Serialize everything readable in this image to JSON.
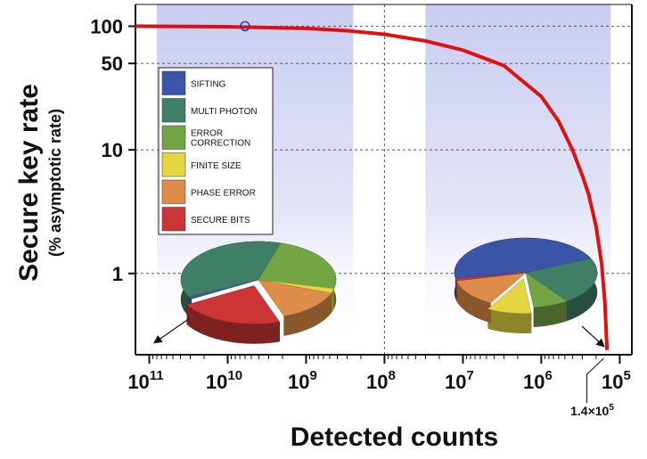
{
  "chart_data": {
    "type": "line",
    "xlabel": "Detected counts",
    "ylabel": "Secure key rate",
    "ylabel_sub": "(% asymptotic rate)",
    "x_scale": "log",
    "x_reversed": true,
    "y_scale": "log",
    "xlim": [
      150000000000,
      70000
    ],
    "ylim": [
      0.22,
      150
    ],
    "x_ticks": [
      {
        "value": 100000000000,
        "base": "10",
        "exp": "11"
      },
      {
        "value": 10000000000,
        "base": "10",
        "exp": "10"
      },
      {
        "value": 1000000000,
        "base": "10",
        "exp": "9"
      },
      {
        "value": 100000000,
        "base": "10",
        "exp": "8"
      },
      {
        "value": 10000000,
        "base": "10",
        "exp": "7"
      },
      {
        "value": 1000000,
        "base": "10",
        "exp": "6"
      },
      {
        "value": 100000,
        "base": "10",
        "exp": "5"
      }
    ],
    "y_ticks": [
      {
        "value": 100,
        "label": "100"
      },
      {
        "value": 50,
        "label": "50"
      },
      {
        "value": 10,
        "label": "10"
      },
      {
        "value": 1,
        "label": "1"
      }
    ],
    "grid": true,
    "shaded_bands": [
      {
        "x_start": 80000000000,
        "x_end": 250000000
      },
      {
        "x_start": 30000000,
        "x_end": 130000
      }
    ],
    "series": [
      {
        "color": "#e01010",
        "x": [
          150000000000,
          10000000000,
          1000000000,
          300000000,
          100000000,
          30000000,
          10000000,
          3000000,
          1000000,
          600000,
          400000,
          300000,
          250000,
          200000,
          170000,
          155000,
          145000
        ],
        "y": [
          100,
          99,
          96,
          92,
          86,
          76,
          64,
          48,
          27,
          17,
          10,
          6.2,
          4.4,
          2.4,
          1.2,
          0.6,
          0.24
        ]
      }
    ],
    "marker": {
      "x": 6000000000,
      "y": 100,
      "color": "#2a3cc8"
    },
    "annotation": {
      "label_base": "1.4×10",
      "label_exp": "5",
      "x": 140000
    },
    "legend": {
      "position": "upper-left",
      "items": [
        {
          "label": "SIFTING",
          "color": "#3a55a8"
        },
        {
          "label": "MULTI PHOTON",
          "color": "#3e7f66"
        },
        {
          "label": "ERROR\nCORRECTION",
          "color": "#74a545"
        },
        {
          "label": "FINITE SIZE",
          "color": "#e4d640"
        },
        {
          "label": "PHASE ERROR",
          "color": "#dd8c4a"
        },
        {
          "label": "SECURE BITS",
          "color": "#cc3535"
        }
      ]
    },
    "pies": [
      {
        "points_to": "left",
        "slices": [
          {
            "name": "SIFTING",
            "value": 1
          },
          {
            "name": "MULTI PHOTON",
            "value": 37
          },
          {
            "name": "ERROR CORRECTION",
            "value": 24
          },
          {
            "name": "FINITE SIZE",
            "value": 2
          },
          {
            "name": "PHASE ERROR",
            "value": 14
          },
          {
            "name": "SECURE BITS",
            "value": 22
          }
        ]
      },
      {
        "points_to": "right",
        "slices": [
          {
            "name": "SIFTING",
            "value": 46
          },
          {
            "name": "MULTI PHOTON",
            "value": 22
          },
          {
            "name": "ERROR CORRECTION",
            "value": 8
          },
          {
            "name": "FINITE SIZE",
            "value": 10
          },
          {
            "name": "PHASE ERROR",
            "value": 13
          },
          {
            "name": "SECURE BITS",
            "value": 1
          }
        ]
      }
    ]
  }
}
